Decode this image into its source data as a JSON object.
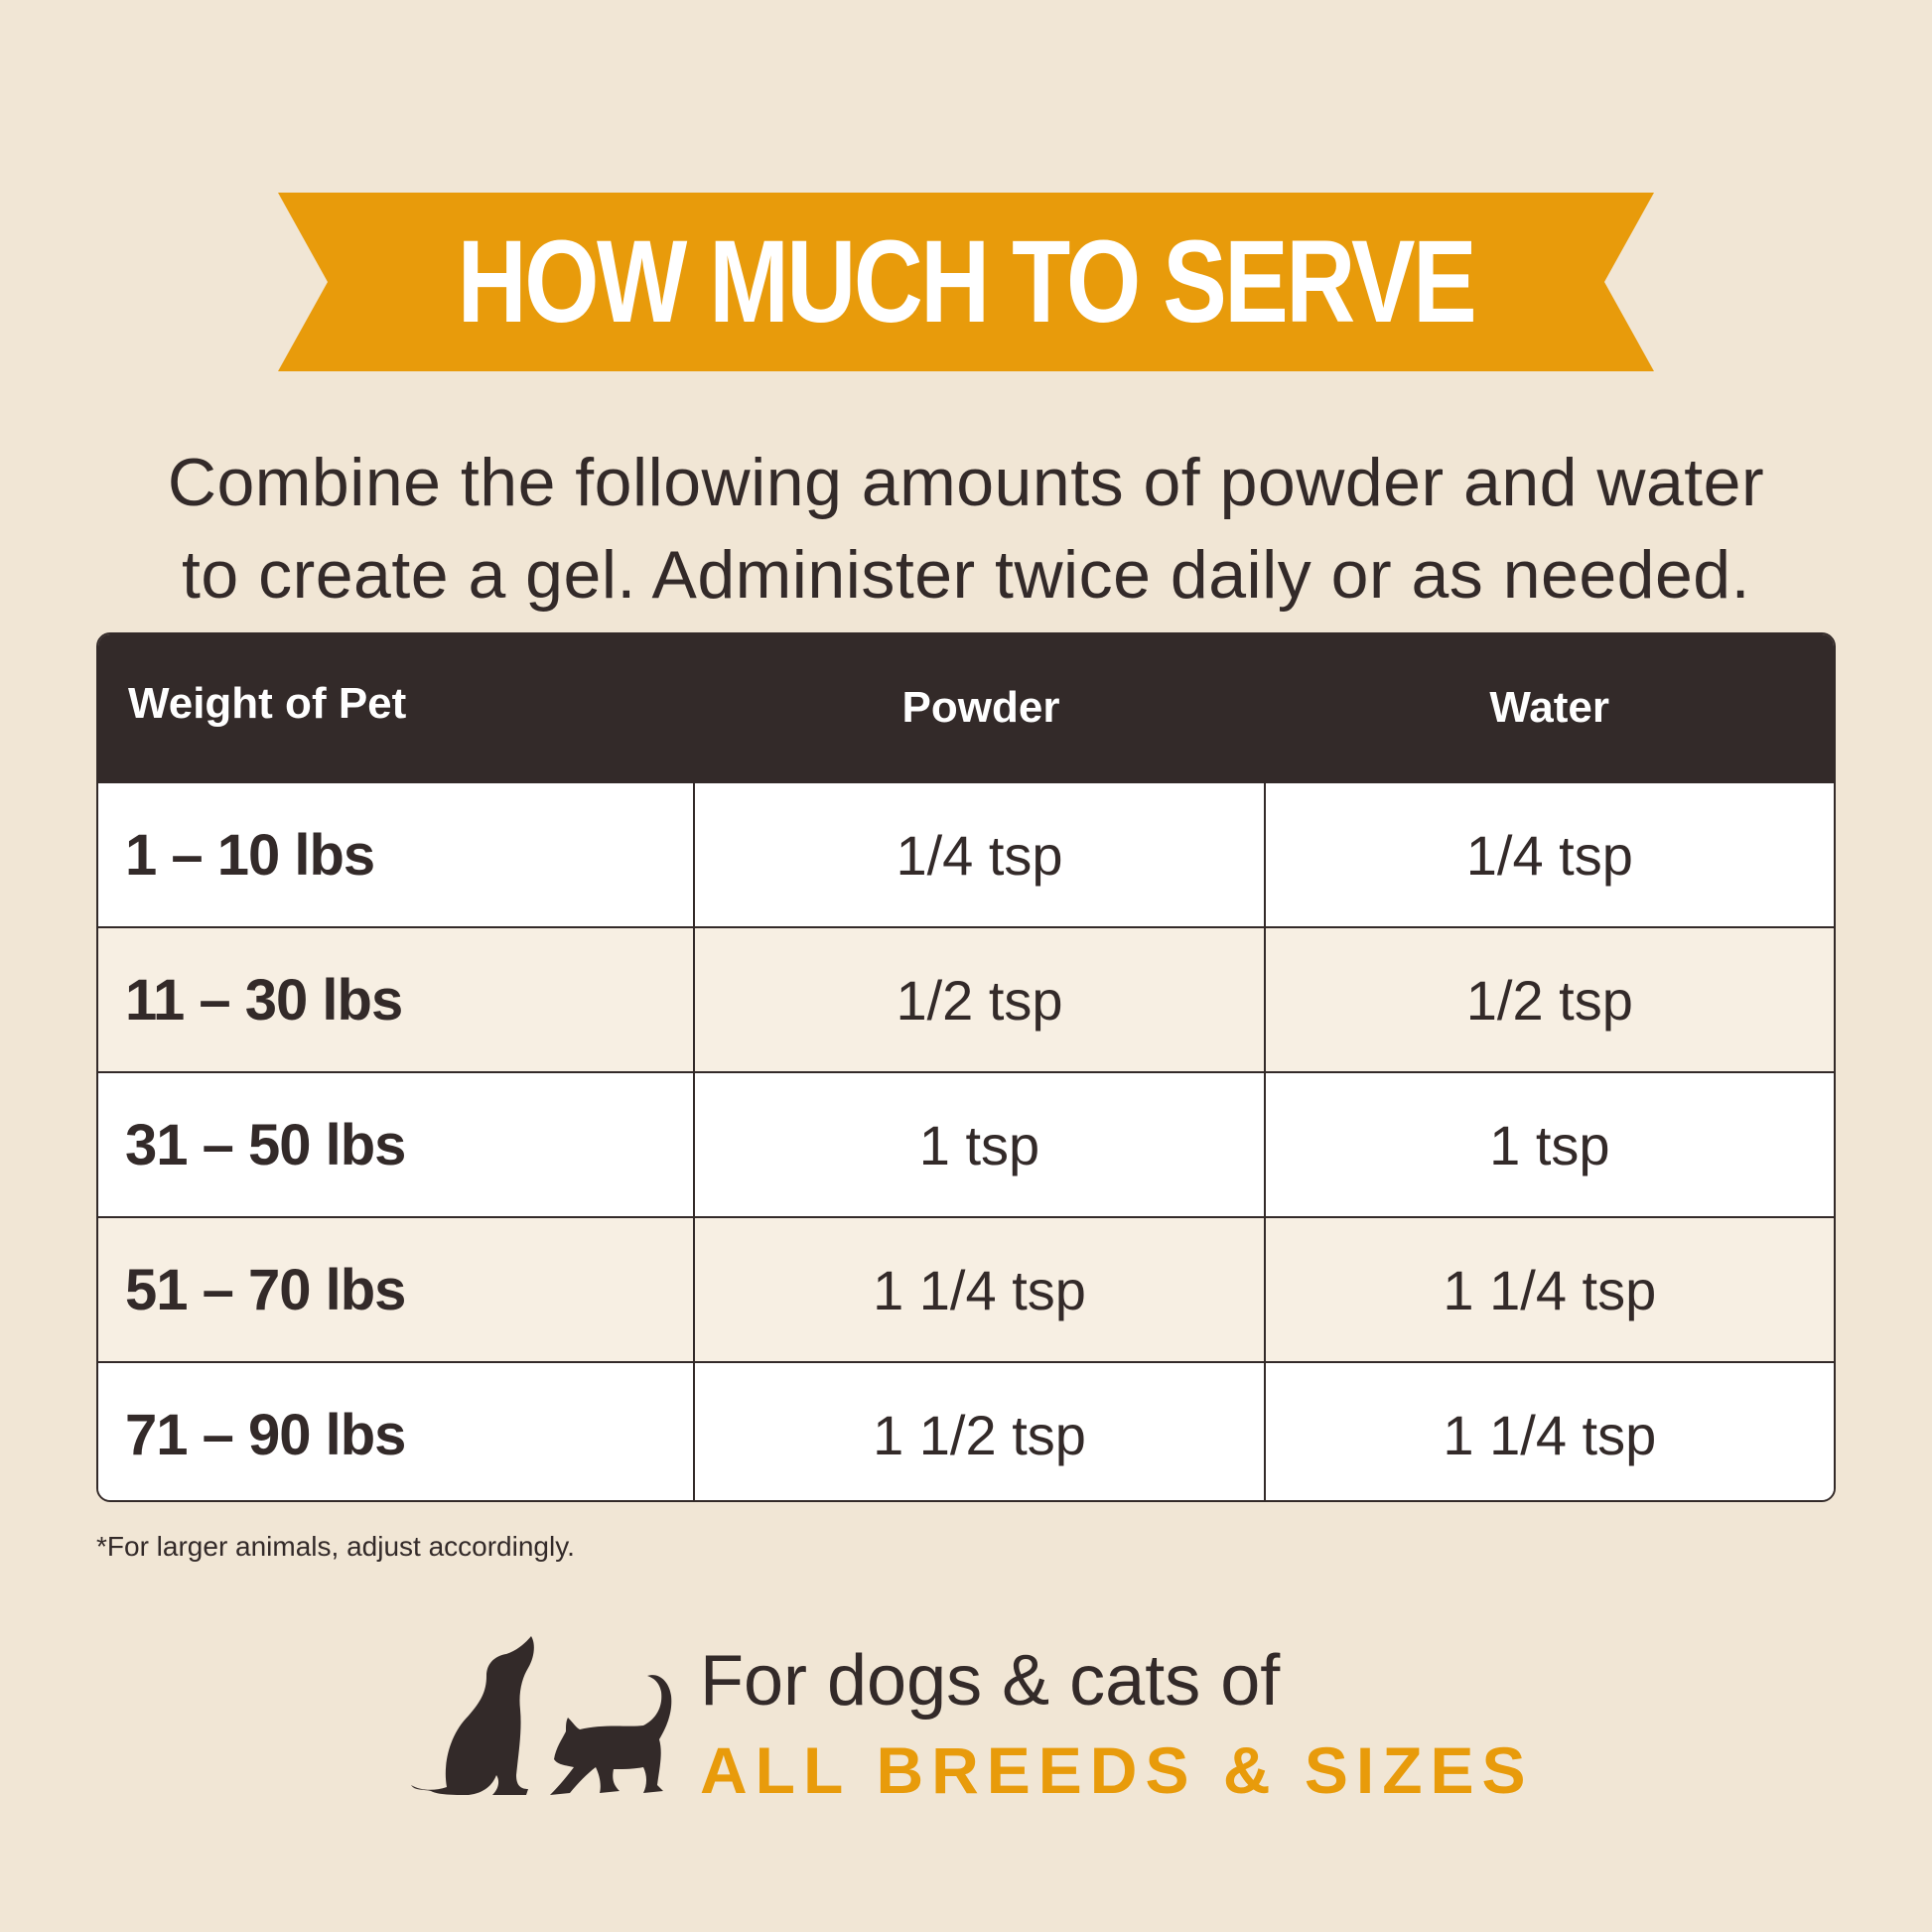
{
  "banner": {
    "title": "HOW MUCH TO SERVE",
    "color": "#e89b0b"
  },
  "intro": {
    "line1": "Combine the following amounts of powder and water",
    "line2": "to create a gel. Administer twice daily or as needed."
  },
  "table": {
    "headers": [
      "Weight of Pet",
      "Powder",
      "Water"
    ],
    "rows": [
      [
        "1 – 10 lbs",
        "1/4 tsp",
        "1/4 tsp"
      ],
      [
        "11 – 30 lbs",
        "1/2 tsp",
        "1/2 tsp"
      ],
      [
        "31 – 50 lbs",
        "1 tsp",
        "1 tsp"
      ],
      [
        "51 – 70 lbs",
        "1 1/4 tsp",
        "1 1/4 tsp"
      ],
      [
        "71 – 90 lbs",
        "1 1/2 tsp",
        "1 1/4 tsp"
      ]
    ]
  },
  "footnote": "*For larger animals, adjust accordingly.",
  "tagline": {
    "line1": "For dogs & cats of",
    "line2": "ALL BREEDS & SIZES",
    "icon": "dog-and-cat-silhouette-icon"
  },
  "colors": {
    "background": "#f1e6d5",
    "header": "#332a29",
    "accent": "#e89b0b"
  }
}
